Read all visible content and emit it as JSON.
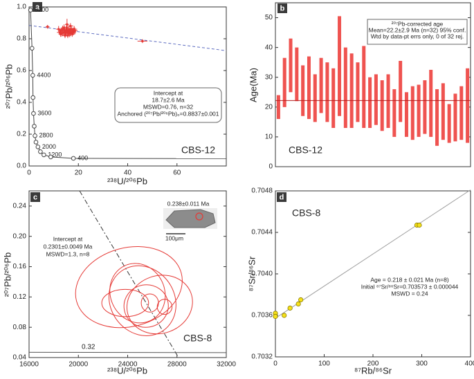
{
  "chart_data": [
    {
      "type": "scatter",
      "panel": "a",
      "label": "CBS-12",
      "x_label": "²³⁸U/²⁰⁶Pb",
      "y_label": "²⁰⁷Pb/²⁰⁶Pb",
      "xlim": [
        0,
        80
      ],
      "ylim": [
        0,
        1.0
      ],
      "xticks": [
        0,
        20,
        40,
        60
      ],
      "yticks": [
        {
          "value": 0,
          "label": "0.0"
        },
        0.2,
        0.4,
        0.6,
        0.8,
        {
          "value": 1,
          "label": "1.0"
        }
      ],
      "annotation": [
        "Intercept at",
        "18.7±2.6 Ma",
        "MSWD=0.76, n=32",
        "Anchored (²⁰⁷Pb/²⁰⁶Pb)₀=0.8837±0.001"
      ],
      "series": [
        {
          "color": "#e53935",
          "x": [
            7.5,
            12.0,
            12.5,
            13.0,
            13.3,
            13.6,
            14.0,
            14.2,
            14.5,
            14.8,
            15.0,
            15.2,
            15.5,
            15.7,
            16.0,
            16.2,
            16.5,
            16.7,
            17.0,
            17.2,
            17.5,
            17.8,
            18.0,
            18.3,
            15.4,
            15.3,
            16.8,
            14.6,
            17.6,
            12.8,
            18.6,
            46.0
          ],
          "values": [
            0.875,
            0.86,
            0.84,
            0.85,
            0.83,
            0.86,
            0.84,
            0.87,
            0.85,
            0.83,
            0.84,
            0.86,
            0.85,
            0.82,
            0.84,
            0.86,
            0.83,
            0.85,
            0.84,
            0.86,
            0.83,
            0.85,
            0.84,
            0.86,
            0.89,
            0.87,
            0.88,
            0.82,
            0.84,
            0.83,
            0.85,
            0.785
          ],
          "xerr": [
            0.8,
            1.0,
            1.2,
            1.0,
            1.1,
            0.9,
            1.2,
            1.0,
            1.3,
            1.0,
            1.1,
            1.2,
            1.0,
            1.1,
            1.3,
            1.0,
            1.2,
            1.1,
            1.0,
            1.3,
            1.2,
            1.0,
            1.1,
            1.2,
            0.8,
            1.0,
            1.1,
            1.2,
            1.0,
            0.9,
            1.1,
            2.0
          ],
          "yerr": [
            0.012,
            0.02,
            0.018,
            0.02,
            0.016,
            0.022,
            0.018,
            0.02,
            0.018,
            0.016,
            0.02,
            0.022,
            0.018,
            0.016,
            0.02,
            0.018,
            0.02,
            0.018,
            0.022,
            0.016,
            0.018,
            0.02,
            0.018,
            0.02,
            0.035,
            0.02,
            0.018,
            0.016,
            0.02,
            0.018,
            0.02,
            0.012
          ]
        }
      ],
      "lines": [
        {
          "color": "#5c6bc0",
          "dash": "4,3",
          "x": [
            0,
            80
          ],
          "values": [
            0.8837,
            0.725
          ]
        },
        {
          "color": "#444444",
          "x": [
            18.0,
            80
          ],
          "values": [
            0.048,
            0.0465
          ]
        }
      ],
      "concordia": {
        "color": "#444444",
        "x": [
          0.6,
          1.2,
          1.5,
          1.6,
          1.8,
          2.1,
          2.4,
          2.8,
          3.6,
          4.6,
          6.0,
          8.8,
          18.0
        ],
        "values": [
          0.98,
          0.74,
          0.57,
          0.43,
          0.33,
          0.25,
          0.19,
          0.15,
          0.12,
          0.09,
          0.07,
          0.057,
          0.048
        ],
        "labels": [
          "5200",
          null,
          "4400",
          null,
          "3600",
          null,
          "2800",
          null,
          "2000",
          null,
          "1200",
          null,
          "400"
        ]
      }
    },
    {
      "type": "range-bar",
      "panel": "b",
      "label": "CBS-12",
      "y_label": "Age(Ma)",
      "ylim": [
        0,
        55
      ],
      "yticks": [
        0,
        10,
        20,
        30,
        40,
        50
      ],
      "color": "#ef5350",
      "low": [
        16,
        20,
        25,
        22,
        17,
        16,
        15,
        18,
        15,
        13,
        17,
        13,
        13,
        15,
        13,
        13,
        14,
        12,
        13,
        10,
        15,
        10,
        9,
        10,
        11,
        10,
        7,
        9,
        8,
        8.5,
        9,
        8
      ],
      "high": [
        24,
        36.5,
        43,
        40,
        34,
        37,
        31,
        36.5,
        35,
        33,
        50.5,
        40,
        38,
        35,
        40.5,
        30,
        31,
        29,
        31,
        26,
        35.5,
        25,
        27,
        27.5,
        29,
        32.5,
        26,
        28,
        21,
        24.5,
        27,
        33
      ],
      "mean": 22.2,
      "mean_color": "#b71c1c",
      "annotation": [
        "²⁰⁷Pb-corrected age",
        "Mean=22.2±2.9 Ma (n=32) 95% conf.",
        "Wtd by data-pt errs only, 0 of 32 rej."
      ]
    },
    {
      "type": "ellipse",
      "panel": "c",
      "label": "CBS-8",
      "x_label": "²³⁸U/²⁰⁶Pb",
      "y_label": "²⁰⁷Pb/²⁰⁶Pb",
      "xlim": [
        16000,
        32000
      ],
      "ylim": [
        0.04,
        0.26
      ],
      "xticks": [
        16000,
        20000,
        24000,
        28000,
        32000
      ],
      "yticks": [
        0.04,
        0.08,
        0.12,
        0.16,
        {
          "value": 0.2,
          "label": "0.20"
        },
        0.24
      ],
      "color": "#e53935",
      "ellipses": {
        "x": [
          24100,
          25200,
          24800,
          25500,
          23800,
          25800,
          27000,
          26600
        ],
        "values": [
          0.133,
          0.115,
          0.125,
          0.108,
          0.112,
          0.112,
          0.107,
          0.11
        ],
        "xerr": [
          4400,
          2600,
          2200,
          1800,
          1900,
          700,
          600,
          2700
        ],
        "yerr": [
          0.052,
          0.048,
          0.04,
          0.028,
          0.018,
          0.012,
          0.01,
          0.038
        ],
        "angle": [
          -15,
          -35,
          -25,
          -10,
          0,
          0,
          0,
          -20
        ]
      },
      "lines": [
        {
          "color": "#333333",
          "dash": "7,3,2,3",
          "x": [
            20100,
            28130
          ],
          "values": [
            0.26,
            0.04
          ]
        },
        {
          "color": "#555555",
          "x": [
            16000,
            32000
          ],
          "values": [
            0.047,
            0.0465
          ]
        }
      ],
      "concordia_label": "0.32",
      "annotation": [
        "Intercept at",
        "0.2301±0.0049 Ma",
        "MSWD=1.3, n=8"
      ],
      "inset_age": "0.238±0.011 Ma",
      "scale_bar": "100μm"
    },
    {
      "type": "scatter",
      "panel": "d",
      "label": "CBS-8",
      "x_label": "⁸⁷Rb/⁸⁶Sr",
      "y_label": "⁸⁷Sr/⁸⁶Sr",
      "xlim": [
        0,
        400
      ],
      "ylim": [
        0.7032,
        0.7048
      ],
      "xticks": [
        0,
        100,
        200,
        300,
        400
      ],
      "yticks": [
        0.7032,
        0.7036,
        {
          "value": 0.704,
          "label": "0.7040"
        },
        0.7044,
        0.7048
      ],
      "series": [
        {
          "color": "#f5e11a",
          "x": [
            0,
            0,
            18,
            30,
            47,
            52,
            290,
            295
          ],
          "values": [
            0.70362,
            0.70359,
            0.7036,
            0.70367,
            0.70371,
            0.70375,
            0.70447,
            0.70447
          ]
        }
      ],
      "lines": [
        {
          "color": "#9e9e9e",
          "x": [
            0,
            400
          ],
          "values": [
            0.703573,
            0.70481
          ]
        }
      ],
      "annotation": [
        "Age = 0.218 ± 0.021 Ma  (n=8)",
        "Initial ⁸⁷Sr/⁸⁶Sr=0.703573 ± 0.000044",
        "MSWD = 0.24"
      ]
    }
  ]
}
